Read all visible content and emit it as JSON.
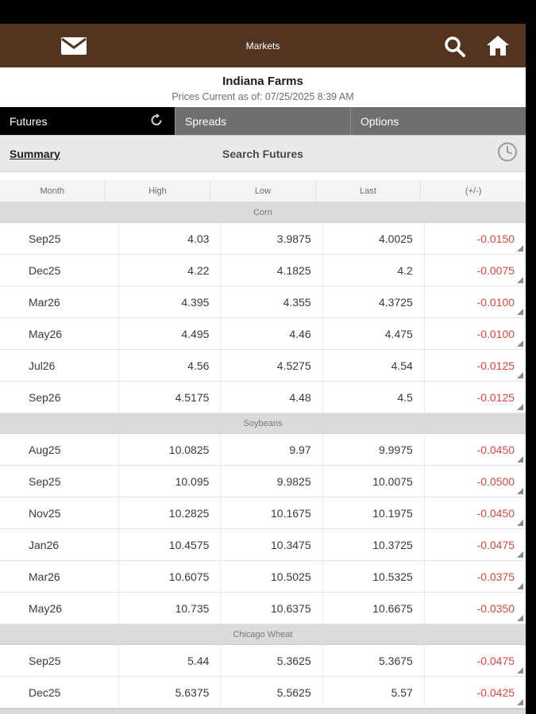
{
  "header": {
    "title": "Markets",
    "icons": [
      "menu-icon",
      "mail-icon",
      "search-icon",
      "home-icon"
    ]
  },
  "account": {
    "name": "Indiana Farms",
    "prices_current": "Prices Current as of: 07/25/2025 8:39 AM"
  },
  "tabs": [
    {
      "label": "Futures",
      "active": true,
      "has_refresh_icon": true
    },
    {
      "label": "Spreads",
      "active": false
    },
    {
      "label": "Options",
      "active": false
    }
  ],
  "subnav": {
    "summary_label": "Summary",
    "center_label": "Search Futures",
    "right_icon": "clock-icon"
  },
  "table": {
    "columns": [
      "Month",
      "High",
      "Low",
      "Last",
      "(+/-)"
    ],
    "groups": [
      {
        "name": "Corn",
        "rows": [
          [
            "Sep25",
            "4.03",
            "3.9875",
            "4.0025",
            "-0.0150"
          ],
          [
            "Dec25",
            "4.22",
            "4.1825",
            "4.2",
            "-0.0075"
          ],
          [
            "Mar26",
            "4.395",
            "4.355",
            "4.3725",
            "-0.0100"
          ],
          [
            "May26",
            "4.495",
            "4.46",
            "4.475",
            "-0.0100"
          ],
          [
            "Jul26",
            "4.56",
            "4.5275",
            "4.54",
            "-0.0125"
          ],
          [
            "Sep26",
            "4.5175",
            "4.48",
            "4.5",
            "-0.0125"
          ]
        ]
      },
      {
        "name": "Soybeans",
        "rows": [
          [
            "Aug25",
            "10.0825",
            "9.97",
            "9.9975",
            "-0.0450"
          ],
          [
            "Sep25",
            "10.095",
            "9.9825",
            "10.0075",
            "-0.0500"
          ],
          [
            "Nov25",
            "10.2825",
            "10.1675",
            "10.1975",
            "-0.0450"
          ],
          [
            "Jan26",
            "10.4575",
            "10.3475",
            "10.3725",
            "-0.0475"
          ],
          [
            "Mar26",
            "10.6075",
            "10.5025",
            "10.5325",
            "-0.0375"
          ],
          [
            "May26",
            "10.735",
            "10.6375",
            "10.6675",
            "-0.0350"
          ]
        ]
      },
      {
        "name": "Chicago Wheat",
        "rows": [
          [
            "Sep25",
            "5.44",
            "5.3625",
            "5.3675",
            "-0.0475"
          ],
          [
            "Dec25",
            "5.6375",
            "5.5625",
            "5.57",
            "-0.0425"
          ]
        ]
      }
    ]
  },
  "colors": {
    "header_brown": "#523420",
    "active_tab_black": "#000000",
    "inactive_tab_gray": "#6f6f6f",
    "negative_red": "#de4440",
    "section_band_gray": "#dbdbd9"
  }
}
